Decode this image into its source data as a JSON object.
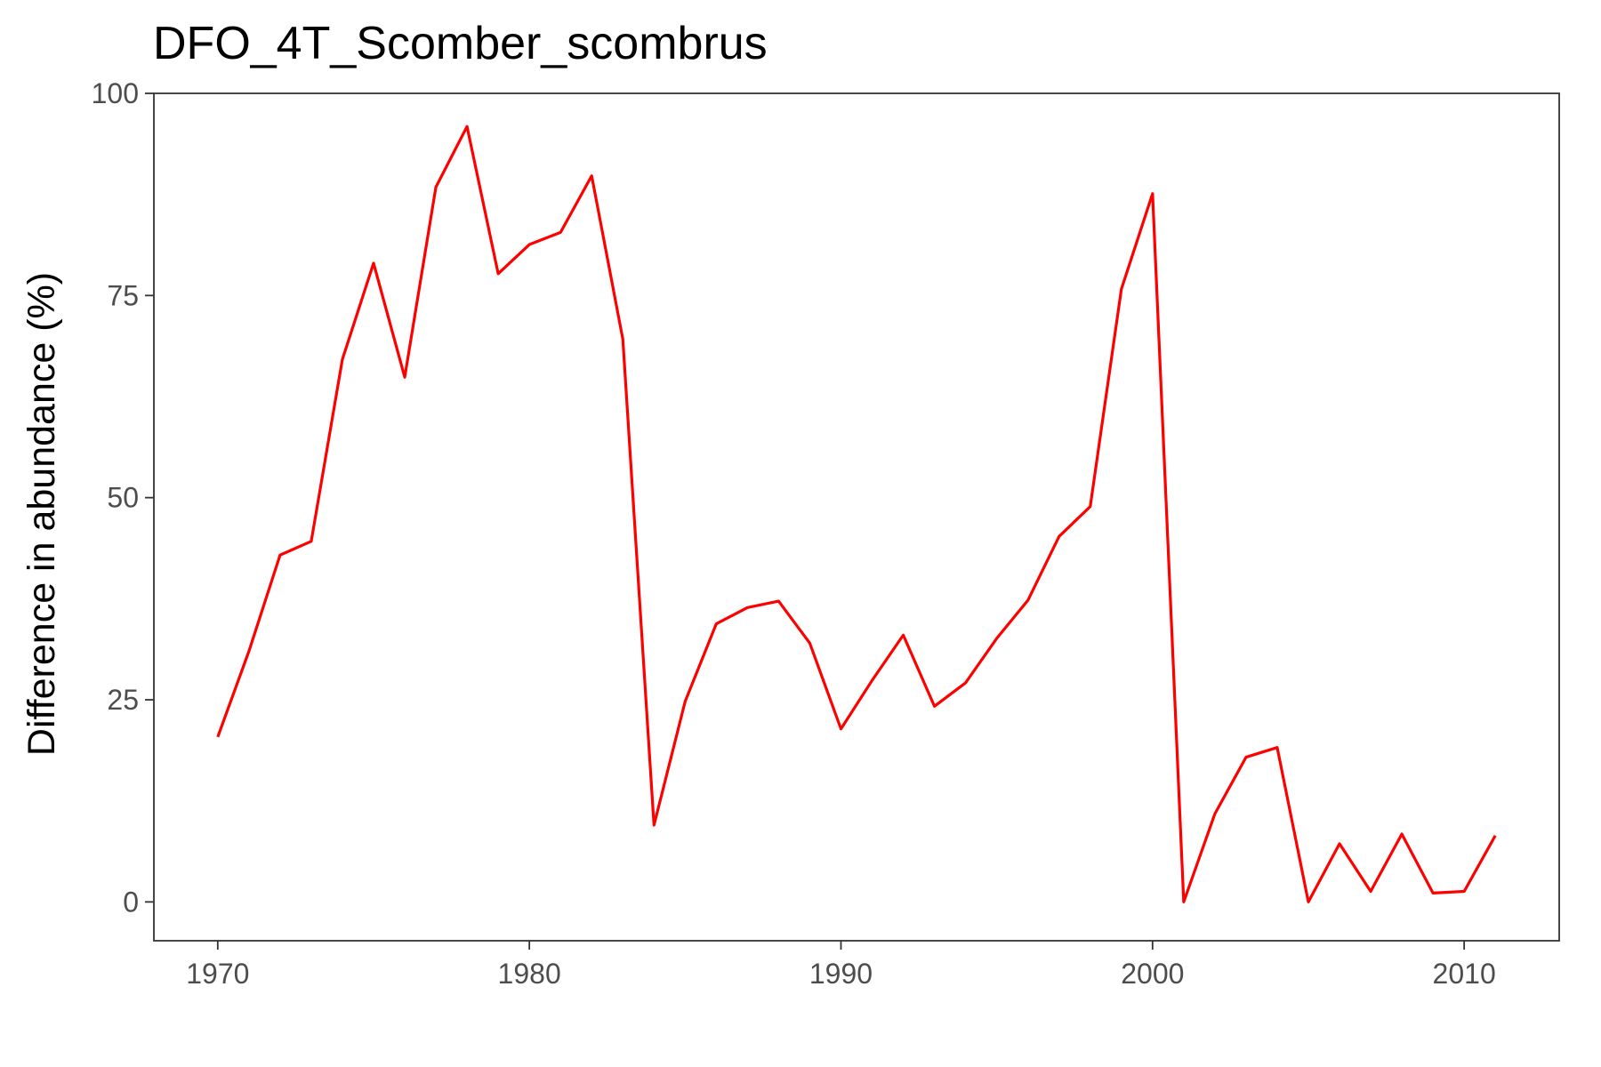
{
  "chart_data": {
    "type": "line",
    "title": "DFO_4T_Scomber_scombrus",
    "xlabel": "",
    "ylabel": "Difference in abundance (%)",
    "xlim": [
      1967.95,
      2013.05
    ],
    "ylim": [
      -4.8,
      100
    ],
    "x_ticks": [
      1970,
      1980,
      1990,
      2000,
      2010
    ],
    "y_ticks": [
      0,
      25,
      50,
      75,
      100
    ],
    "grid": false,
    "legend": "none",
    "series": [
      {
        "color": "#ff0000",
        "x": [
          1970,
          1971,
          1972,
          1973,
          1974,
          1975,
          1976,
          1977,
          1978,
          1979,
          1980,
          1981,
          1982,
          1983,
          1984,
          1985,
          1986,
          1987,
          1988,
          1989,
          1990,
          1991,
          1992,
          1993,
          1994,
          1995,
          1996,
          1997,
          1998,
          1999,
          2000,
          2001,
          2002,
          2003,
          2004,
          2005,
          2006,
          2007,
          2008,
          2009,
          2010,
          2011
        ],
        "y": [
          20.4,
          31,
          42.9,
          44.6,
          67.1,
          79,
          64.9,
          88.4,
          95.9,
          77.7,
          81.3,
          82.8,
          89.8,
          69.6,
          9.5,
          24.8,
          34.4,
          36.4,
          37.2,
          32,
          21.4,
          27.4,
          33,
          24.2,
          27.1,
          32.6,
          37.3,
          45.2,
          48.9,
          75.8,
          87.6,
          0,
          10.9,
          17.9,
          19.1,
          0,
          7.2,
          1.3,
          8.4,
          1.1,
          1.3,
          8.2
        ]
      }
    ]
  }
}
